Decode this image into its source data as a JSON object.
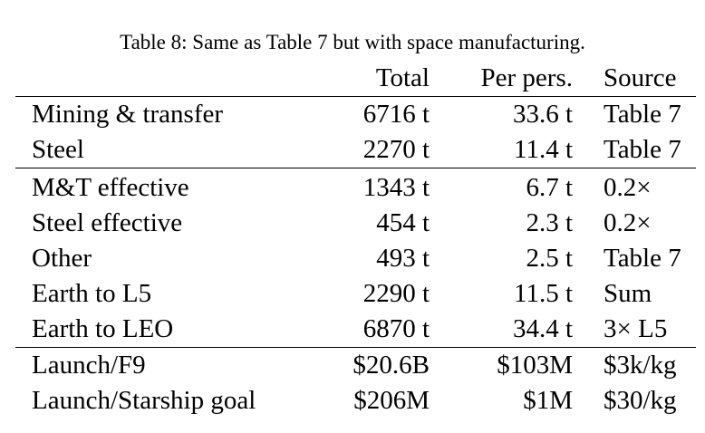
{
  "caption": "Table 8: Same as Table 7 but with space manufacturing.",
  "columns": {
    "label": "",
    "total": "Total",
    "per_person": "Per pers.",
    "source": "Source"
  },
  "rows": [
    {
      "label": "Mining & transfer",
      "total": "6716 t",
      "per_person": "33.6 t",
      "source": "Table 7"
    },
    {
      "label": "Steel",
      "total": "2270 t",
      "per_person": "11.4 t",
      "source": "Table 7"
    },
    {
      "label": "M&T effective",
      "total": "1343 t",
      "per_person": "6.7 t",
      "source": "0.2×"
    },
    {
      "label": "Steel effective",
      "total": "454 t",
      "per_person": "2.3 t",
      "source": "0.2×"
    },
    {
      "label": "Other",
      "total": "493 t",
      "per_person": "2.5 t",
      "source": "Table 7"
    },
    {
      "label": "Earth to L5",
      "total": "2290 t",
      "per_person": "11.5 t",
      "source": "Sum"
    },
    {
      "label": "Earth to LEO",
      "total": "6870 t",
      "per_person": "34.4 t",
      "source": "3× L5"
    },
    {
      "label": "Launch/F9",
      "total": "$20.6B",
      "per_person": "$103M",
      "source": "$3k/kg"
    },
    {
      "label": "Launch/Starship goal",
      "total": "$206M",
      "per_person": "$1M",
      "source": "$30/kg"
    }
  ]
}
